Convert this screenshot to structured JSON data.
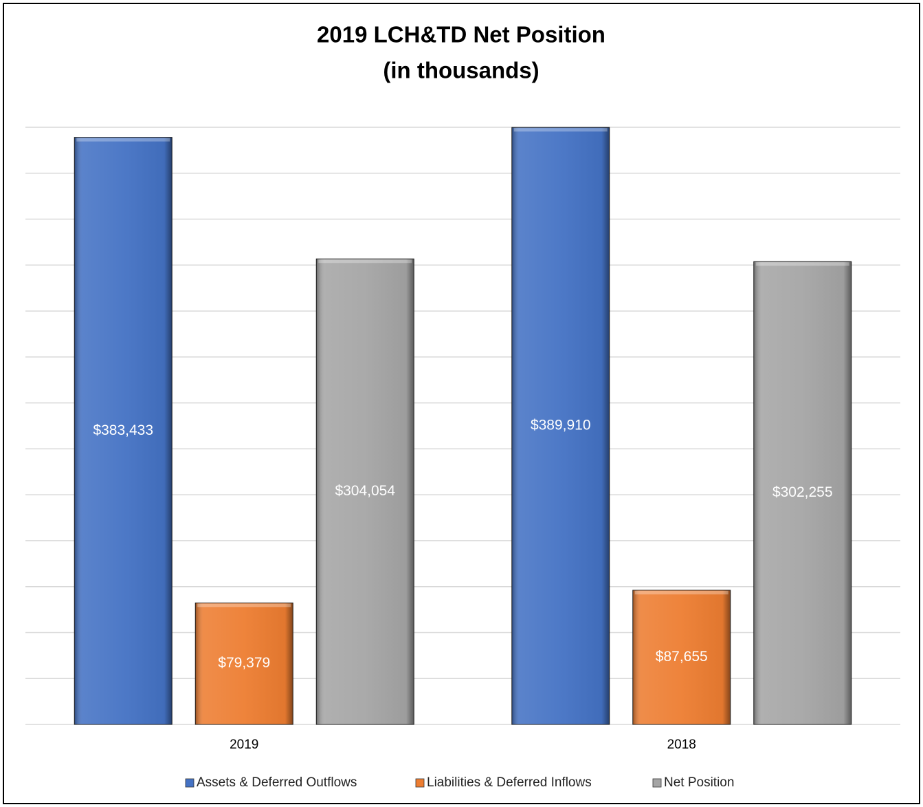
{
  "chart_data": {
    "type": "bar",
    "title": "2019 LCH&TD Net Position",
    "subtitle": "(in thousands)",
    "categories": [
      "2019",
      "2018"
    ],
    "series": [
      {
        "name": "Assets & Deferred Outflows",
        "color": "#4472c4",
        "values": [
          383433,
          389910
        ],
        "value_labels": [
          "$383,433",
          "$389,910"
        ]
      },
      {
        "name": "Liabilities & Deferred Inflows",
        "color": "#ed7d31",
        "values": [
          79379,
          87655
        ],
        "value_labels": [
          "$79,379",
          "$87,655"
        ]
      },
      {
        "name": "Net Position",
        "color": "#a5a5a5",
        "values": [
          304054,
          302255
        ],
        "value_labels": [
          "$304,054",
          "$302,255"
        ]
      }
    ],
    "ylim": [
      0,
      390000
    ],
    "yticks": [
      0,
      30000,
      60000,
      90000,
      120000,
      150000,
      180000,
      210000,
      240000,
      270000,
      300000,
      330000,
      360000,
      390000
    ],
    "grid": true,
    "legend": "bottom"
  }
}
